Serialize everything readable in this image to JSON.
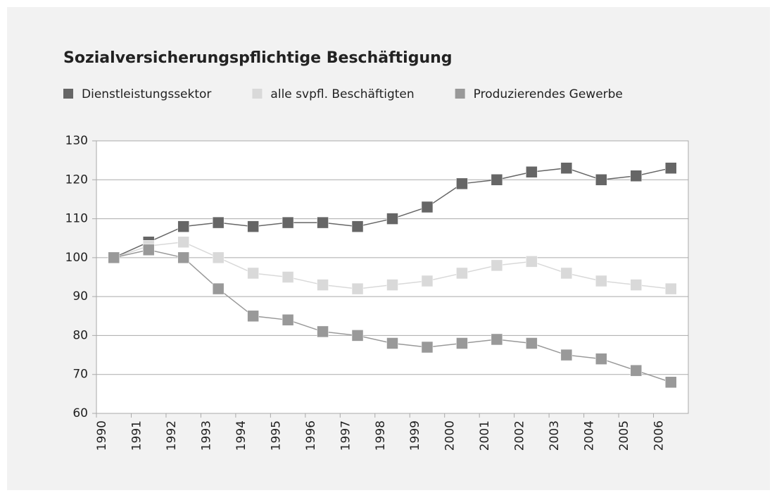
{
  "chart_data": {
    "type": "line",
    "title": "Sozialversicherungspflichtige Beschäftigung",
    "categories": [
      "1990",
      "1991",
      "1992",
      "1993",
      "1994",
      "1995",
      "1996",
      "1997",
      "1998",
      "1999",
      "2000",
      "2001",
      "2002",
      "2003",
      "2004",
      "2005",
      "2006"
    ],
    "series": [
      {
        "name": "Dienstleistungssektor",
        "color": "#666666",
        "values": [
          100,
          104,
          108,
          109,
          108,
          109,
          109,
          108,
          110,
          113,
          119,
          120,
          122,
          123,
          120,
          121,
          123
        ]
      },
      {
        "name": "alle svpfl. Beschäftigten",
        "color": "#d9d9d9",
        "values": [
          100,
          103,
          104,
          100,
          96,
          95,
          93,
          92,
          93,
          94,
          96,
          98,
          99,
          96,
          94,
          93,
          92
        ]
      },
      {
        "name": "Produzierendes Gewerbe",
        "color": "#999999",
        "values": [
          100,
          102,
          100,
          92,
          85,
          84,
          81,
          80,
          78,
          77,
          78,
          79,
          78,
          75,
          74,
          71,
          68
        ]
      }
    ],
    "ylim": [
      60,
      130
    ],
    "yticks": [
      60,
      70,
      80,
      90,
      100,
      110,
      120,
      130
    ],
    "grid": true
  }
}
